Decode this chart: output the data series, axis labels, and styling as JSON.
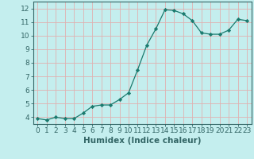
{
  "x": [
    0,
    1,
    2,
    3,
    4,
    5,
    6,
    7,
    8,
    9,
    10,
    11,
    12,
    13,
    14,
    15,
    16,
    17,
    18,
    19,
    20,
    21,
    22,
    23
  ],
  "y": [
    3.9,
    3.8,
    4.0,
    3.9,
    3.9,
    4.3,
    4.8,
    4.9,
    4.9,
    5.3,
    5.8,
    7.5,
    9.3,
    10.5,
    11.9,
    11.85,
    11.6,
    11.1,
    10.2,
    10.1,
    10.1,
    10.4,
    11.2,
    11.1
  ],
  "line_color": "#1a7a6e",
  "marker": "D",
  "marker_size": 2.2,
  "bg_color": "#c4eeee",
  "grid_color": "#e0b0b0",
  "xlabel": "Humidex (Indice chaleur)",
  "xlim": [
    -0.5,
    23.5
  ],
  "ylim": [
    3.5,
    12.5
  ],
  "yticks": [
    4,
    5,
    6,
    7,
    8,
    9,
    10,
    11,
    12
  ],
  "xticks": [
    0,
    1,
    2,
    3,
    4,
    5,
    6,
    7,
    8,
    9,
    10,
    11,
    12,
    13,
    14,
    15,
    16,
    17,
    18,
    19,
    20,
    21,
    22,
    23
  ],
  "xlabel_fontsize": 7.5,
  "tick_fontsize": 6.5,
  "spine_color": "#336666"
}
